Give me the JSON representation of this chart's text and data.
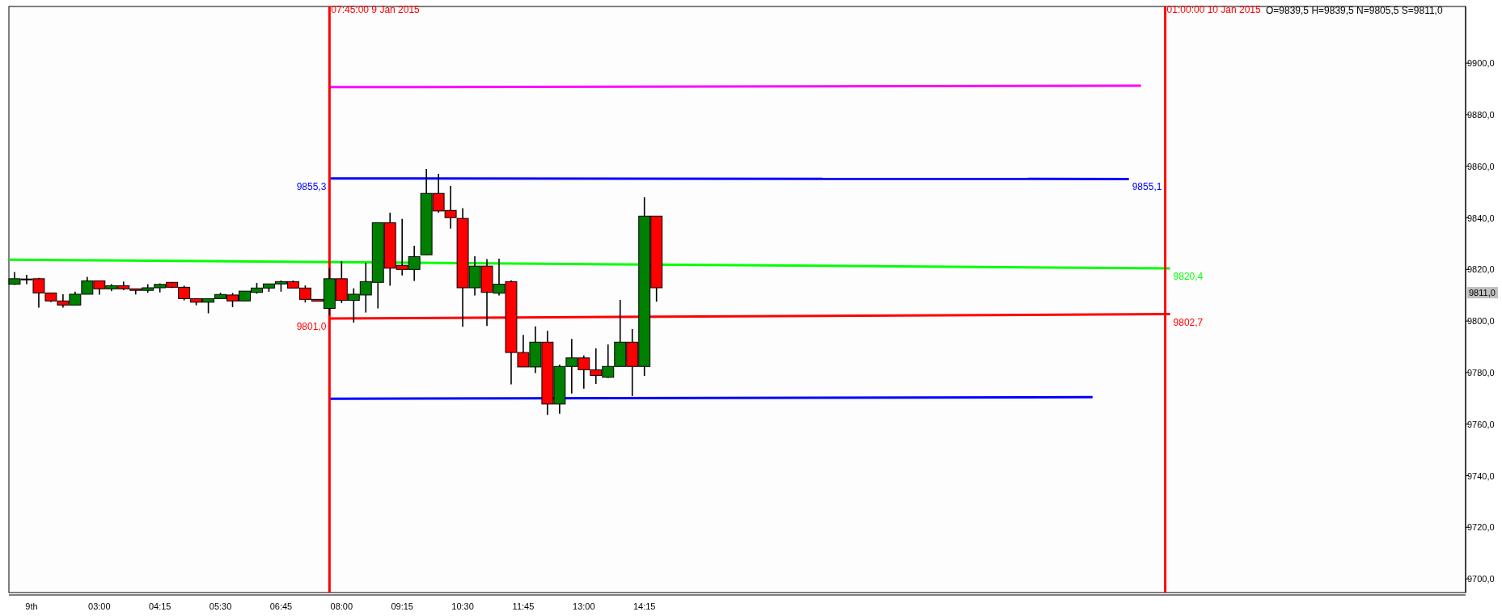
{
  "chart_data": {
    "type": "candlestick",
    "x": [
      "2015-01-09T01:15",
      "2015-01-09T01:30",
      "2015-01-09T01:45",
      "2015-01-09T02:00",
      "2015-01-09T02:15",
      "2015-01-09T02:30",
      "2015-01-09T02:45",
      "2015-01-09T03:00",
      "2015-01-09T03:15",
      "2015-01-09T03:30",
      "2015-01-09T03:45",
      "2015-01-09T04:00",
      "2015-01-09T04:15",
      "2015-01-09T04:30",
      "2015-01-09T04:45",
      "2015-01-09T05:00",
      "2015-01-09T05:15",
      "2015-01-09T05:30",
      "2015-01-09T05:45",
      "2015-01-09T06:00",
      "2015-01-09T06:15",
      "2015-01-09T06:30",
      "2015-01-09T06:45",
      "2015-01-09T07:00",
      "2015-01-09T07:15",
      "2015-01-09T07:30",
      "2015-01-09T07:45",
      "2015-01-09T08:00",
      "2015-01-09T08:15",
      "2015-01-09T08:30",
      "2015-01-09T08:45",
      "2015-01-09T09:00",
      "2015-01-09T09:15",
      "2015-01-09T09:30",
      "2015-01-09T09:45",
      "2015-01-09T10:00",
      "2015-01-09T10:15",
      "2015-01-09T10:30",
      "2015-01-09T10:45",
      "2015-01-09T11:00",
      "2015-01-09T11:15",
      "2015-01-09T11:30",
      "2015-01-09T11:45",
      "2015-01-09T12:00",
      "2015-01-09T12:15",
      "2015-01-09T12:30",
      "2015-01-09T12:45",
      "2015-01-09T13:00",
      "2015-01-09T13:15",
      "2015-01-09T13:30",
      "2015-01-09T13:45",
      "2015-01-09T14:00",
      "2015-01-09T14:15",
      "2015-01-09T14:30"
    ],
    "ohlc": [
      [
        9814.3,
        9819.0,
        9814.0,
        9816.4
      ],
      [
        9816.3,
        9817.9,
        9814.3,
        9816.3
      ],
      [
        9816.4,
        9816.7,
        9805.2,
        9810.9
      ],
      [
        9810.9,
        9811.0,
        9807.3,
        9807.8
      ],
      [
        9807.8,
        9810.4,
        9805.2,
        9806.2
      ],
      [
        9806.2,
        9811.4,
        9806.2,
        9810.4
      ],
      [
        9810.4,
        9817.1,
        9810.4,
        9815.6
      ],
      [
        9815.6,
        9815.6,
        9810.2,
        9812.5
      ],
      [
        9812.5,
        9814.3,
        9811.6,
        9813.7
      ],
      [
        9813.7,
        9815.3,
        9812.0,
        9812.5
      ],
      [
        9812.5,
        9812.5,
        9810.3,
        9811.9
      ],
      [
        9811.9,
        9814.3,
        9811.0,
        9812.9
      ],
      [
        9812.9,
        9814.6,
        9811.1,
        9814.2
      ],
      [
        9815.0,
        9815.0,
        9812.8,
        9813.1
      ],
      [
        9813.1,
        9813.7,
        9808.0,
        9808.7
      ],
      [
        9808.7,
        9808.7,
        9806.1,
        9807.3
      ],
      [
        9807.3,
        9808.7,
        9803.0,
        9808.7
      ],
      [
        9808.7,
        9811.0,
        9808.7,
        9810.3
      ],
      [
        9810.1,
        9810.9,
        9805.4,
        9807.8
      ],
      [
        9807.8,
        9811.6,
        9807.8,
        9811.6
      ],
      [
        9811.1,
        9814.8,
        9810.6,
        9812.8
      ],
      [
        9812.8,
        9814.4,
        9811.3,
        9814.4
      ],
      [
        9814.4,
        9815.7,
        9811.4,
        9815.3
      ],
      [
        9815.3,
        9815.7,
        9812.8,
        9812.8
      ],
      [
        9812.8,
        9813.8,
        9807.2,
        9808.4
      ],
      [
        9808.4,
        9808.4,
        9807.7,
        9807.7
      ],
      [
        9804.9,
        9820.5,
        9802.2,
        9816.4
      ],
      [
        9816.4,
        9823.2,
        9807.0,
        9808.0
      ],
      [
        9808.0,
        9812.7,
        9799.4,
        9810.4
      ],
      [
        9810.1,
        9822.6,
        9803.3,
        9815.3
      ],
      [
        9815.0,
        9838.1,
        9804.9,
        9838.1
      ],
      [
        9838.1,
        9842.0,
        9813.7,
        9820.5
      ],
      [
        9821.6,
        9839.6,
        9817.7,
        9820.0
      ],
      [
        9820.0,
        9829.2,
        9815.6,
        9825.0
      ],
      [
        9825.7,
        9859.0,
        9825.7,
        9849.5
      ],
      [
        9849.5,
        9857.1,
        9842.0,
        9842.7
      ],
      [
        9842.9,
        9852.4,
        9835.9,
        9840.1
      ],
      [
        9839.8,
        9843.8,
        9797.8,
        9812.9
      ],
      [
        9812.9,
        9825.1,
        9809.9,
        9821.3
      ],
      [
        9821.3,
        9824.0,
        9798.1,
        9811.1
      ],
      [
        9810.8,
        9824.2,
        9809.9,
        9814.3
      ],
      [
        9815.3,
        9815.8,
        9775.4,
        9787.8
      ],
      [
        9787.8,
        9794.6,
        9782.2,
        9782.2
      ],
      [
        9782.2,
        9797.9,
        9779.8,
        9791.8
      ],
      [
        9791.8,
        9796.2,
        9763.6,
        9767.8
      ],
      [
        9767.8,
        9783.1,
        9764.1,
        9782.4
      ],
      [
        9782.4,
        9793.1,
        9771.9,
        9785.7
      ],
      [
        9785.7,
        9786.6,
        9773.8,
        9781.1
      ],
      [
        9781.1,
        9789.4,
        9775.6,
        9778.9
      ],
      [
        9778.2,
        9790.9,
        9777.9,
        9782.4
      ],
      [
        9782.4,
        9808.2,
        9782.4,
        9791.8
      ],
      [
        9791.8,
        9796.9,
        9770.9,
        9782.4
      ],
      [
        9782.4,
        9848.0,
        9778.7,
        9840.7
      ],
      [
        9840.7,
        9840.7,
        9807.5,
        9812.9
      ]
    ],
    "colors": [
      "#008000",
      "#ff0000",
      "#ff0000",
      "#ff0000",
      "#ff0000",
      "#008000",
      "#008000",
      "#ff0000",
      "#008000",
      "#ff0000",
      "#ff0000",
      "#008000",
      "#008000",
      "#ff0000",
      "#ff0000",
      "#ff0000",
      "#008000",
      "#008000",
      "#ff0000",
      "#008000",
      "#008000",
      "#008000",
      "#008000",
      "#ff0000",
      "#ff0000",
      "#ff0000",
      "#008000",
      "#ff0000",
      "#008000",
      "#008000",
      "#008000",
      "#ff0000",
      "#ff0000",
      "#008000",
      "#008000",
      "#ff0000",
      "#ff0000",
      "#ff0000",
      "#008000",
      "#ff0000",
      "#008000",
      "#ff0000",
      "#ff0000",
      "#008000",
      "#ff0000",
      "#008000",
      "#008000",
      "#ff0000",
      "#ff0000",
      "#008000",
      "#008000",
      "#ff0000",
      "#008000",
      "#ff0000"
    ],
    "series": [
      {
        "type": "line",
        "color": "#ff00ff",
        "x": [
          "2015-01-09T07:45",
          "2015-01-10T00:30"
        ],
        "values": [
          9890.7,
          9891.3
        ]
      },
      {
        "type": "line",
        "color": "#0000ff",
        "x": [
          "2015-01-09T07:45",
          "2015-01-10T00:15"
        ],
        "values": [
          9855.3,
          9855.1
        ],
        "value_labels": [
          "9855,3",
          "9855,1"
        ]
      },
      {
        "type": "line",
        "color": "#00ff00",
        "x": [
          "2015-01-09T01:08",
          "2015-01-10T01:06"
        ],
        "values": [
          9823.8,
          9820.4
        ],
        "value_labels": [
          null,
          "9820,4"
        ]
      },
      {
        "type": "line",
        "color": "#ff0000",
        "x": [
          "2015-01-09T07:45",
          "2015-01-10T01:06"
        ],
        "values": [
          9801.0,
          9802.7
        ],
        "value_labels": [
          "9801,0",
          "9802,7"
        ]
      },
      {
        "type": "line",
        "color": "#0000ff",
        "x": [
          "2015-01-09T07:45",
          "2015-01-09T23:30"
        ],
        "values": [
          9769.9,
          9770.5
        ]
      }
    ],
    "ref_lines": [
      {
        "axis": "x",
        "value": "2015-01-09T07:45",
        "label": "07:45:00 9 Jan 2015",
        "color": "#ff0000"
      },
      {
        "axis": "x",
        "value": "2015-01-10T01:00",
        "label": "01:00:00 10 Jan 2015",
        "color": "#ff0000"
      }
    ],
    "annotations": [
      "O=9839,5 H=9839,5 N=9805,5 S=9811,0",
      {
        "text": "9811,0",
        "y": 9811
      }
    ],
    "xlim": [
      "2015-01-09T01:08",
      "2015-01-10T07:12"
    ],
    "xticks": [
      {
        "value": "2015-01-09T01:36",
        "label": "9th"
      },
      {
        "value": "2015-01-09T03:00",
        "label": "03:00"
      },
      {
        "value": "2015-01-09T04:15",
        "label": "04:15"
      },
      {
        "value": "2015-01-09T05:30",
        "label": "05:30"
      },
      {
        "value": "2015-01-09T06:45",
        "label": "06:45"
      },
      {
        "value": "2015-01-09T08:00",
        "label": "08:00"
      },
      {
        "value": "2015-01-09T09:15",
        "label": "09:15"
      },
      {
        "value": "2015-01-09T10:30",
        "label": "10:30"
      },
      {
        "value": "2015-01-09T11:45",
        "label": "11:45"
      },
      {
        "value": "2015-01-09T13:00",
        "label": "13:00"
      },
      {
        "value": "2015-01-09T14:15",
        "label": "14:15"
      }
    ],
    "ylim": [
      9694.7,
      9922
    ],
    "yticks": [
      {
        "value": 9700,
        "label": "9700,0"
      },
      {
        "value": 9720,
        "label": "9720,0"
      },
      {
        "value": 9740,
        "label": "9740,0"
      },
      {
        "value": 9760,
        "label": "9760,0"
      },
      {
        "value": 9780,
        "label": "9780,0"
      },
      {
        "value": 9800,
        "label": "9800,0"
      },
      {
        "value": 9820,
        "label": "9820,0"
      },
      {
        "value": 9840,
        "label": "9840,0"
      },
      {
        "value": 9860,
        "label": "9860,0"
      },
      {
        "value": 9880,
        "label": "9880,0"
      },
      {
        "value": 9900,
        "label": "9900,0"
      }
    ]
  }
}
